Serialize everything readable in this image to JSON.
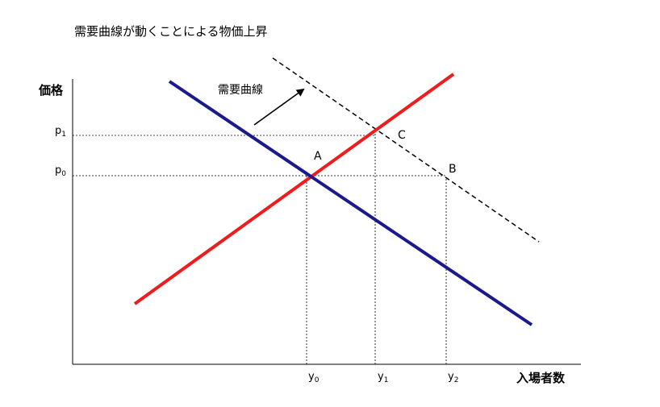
{
  "title": "需要曲線が動くことによる物価上昇",
  "axes": {
    "y_label": "価格",
    "x_label": "入場者数"
  },
  "curve_label": "需要曲線",
  "points": {
    "a": "A",
    "b": "B",
    "c": "C"
  },
  "ticks": {
    "p0": {
      "base": "p",
      "sub": "0"
    },
    "p1": {
      "base": "p",
      "sub": "1"
    },
    "y0": {
      "base": "y",
      "sub": "0"
    },
    "y1": {
      "base": "y",
      "sub": "1"
    },
    "y2": {
      "base": "y",
      "sub": "2"
    }
  },
  "colors": {
    "demand": "#1a1a8c",
    "supply": "#ee1c1c",
    "shifted_demand": "#000000",
    "guides": "#000000"
  }
}
